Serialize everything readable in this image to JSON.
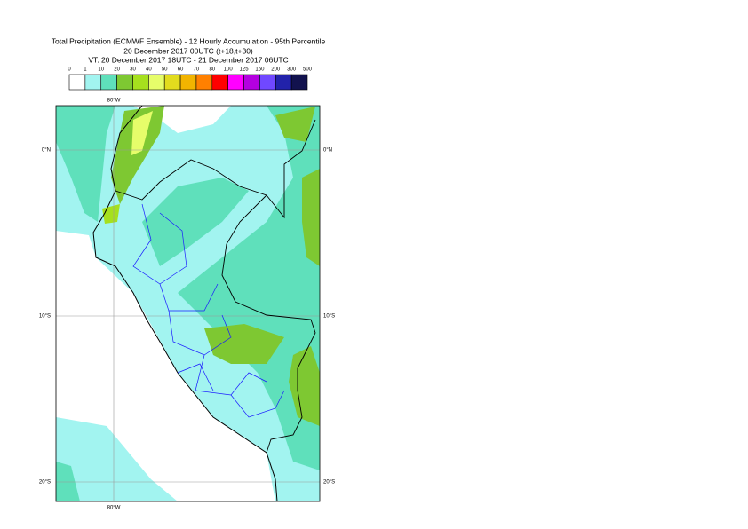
{
  "header": {
    "title_lines": [
      "Total Precipitation (ECMWF Ensemble) - 12 Hourly Accumulation - 95th Percentile",
      "20 December 2017 00UTC (t+18,t+30)",
      "VT: 20 December 2017 18UTC - 21 December 2017 06UTC"
    ]
  },
  "colorbar": {
    "labels": [
      0,
      1,
      10,
      20,
      30,
      40,
      50,
      60,
      70,
      80,
      100,
      125,
      150,
      200,
      300,
      500
    ],
    "colors": [
      "#ffffff",
      "#a2f4f0",
      "#5fe0bb",
      "#7ec832",
      "#a6e01e",
      "#e6fd6a",
      "#e2dc1e",
      "#f2b400",
      "#ff8000",
      "#ff0000",
      "#ff00ff",
      "#b400e0",
      "#7048ff",
      "#2222aa",
      "#12124e"
    ]
  },
  "map": {
    "lon_labels": [
      "80°W"
    ],
    "lat_labels": [
      "0°N",
      "10°S",
      "20°S"
    ]
  }
}
